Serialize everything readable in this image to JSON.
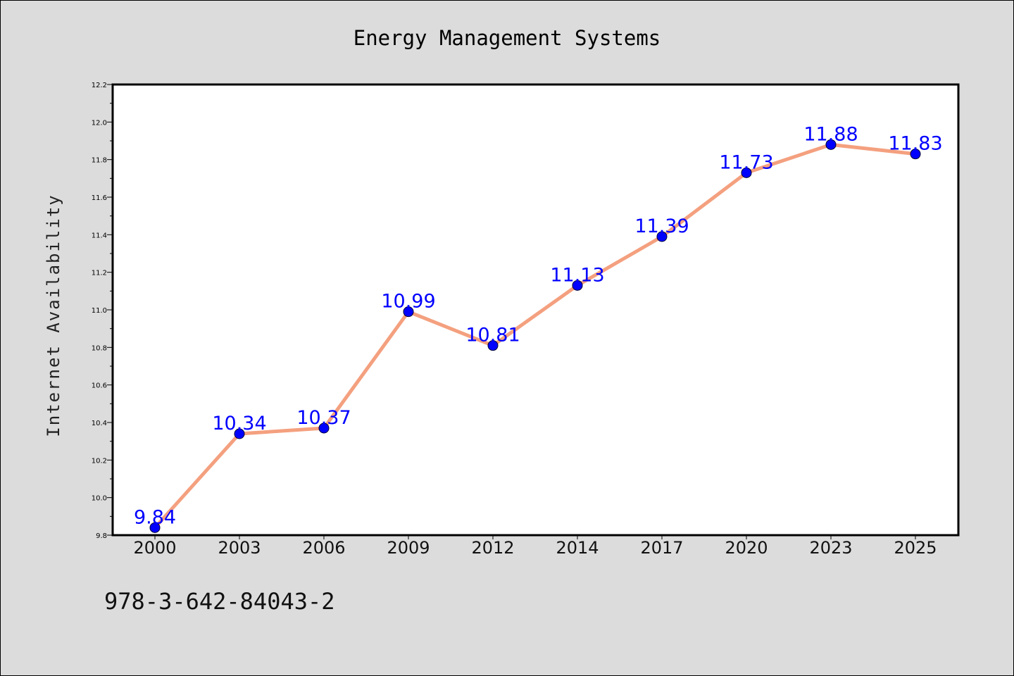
{
  "chart_data": {
    "type": "line",
    "title": "Energy Management Systems",
    "xlabel": "",
    "ylabel": "Internet Availability",
    "categories": [
      "2000",
      "2003",
      "2006",
      "2009",
      "2012",
      "2014",
      "2017",
      "2020",
      "2023",
      "2025"
    ],
    "series": [
      {
        "values": [
          9.84,
          10.34,
          10.37,
          10.99,
          10.81,
          11.13,
          11.39,
          11.73,
          11.88,
          11.83
        ],
        "labels": [
          "9.84",
          "10.34",
          "10.37",
          "10.99",
          "10.81",
          "11.13",
          "11.39",
          "11.73",
          "11.88",
          "11.83"
        ]
      }
    ],
    "ylim": [
      9.8,
      12.2
    ],
    "yticks": [
      "9.8",
      "10.0",
      "10.2",
      "10.4",
      "10.6",
      "10.8",
      "11.0",
      "11.2",
      "11.4",
      "11.6",
      "11.8",
      "12.0",
      "12.2"
    ],
    "grid": false,
    "colors": {
      "line": "#f4a07f",
      "marker": "#0000ff",
      "label": "#0000ff"
    }
  },
  "footer": {
    "isbn": "978-3-642-84043-2"
  }
}
